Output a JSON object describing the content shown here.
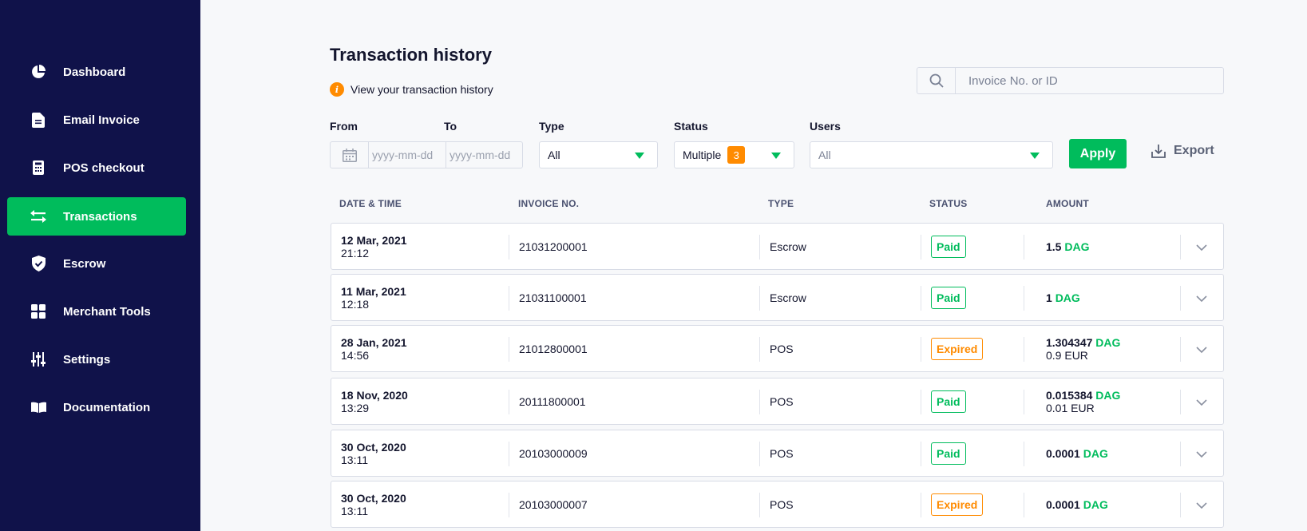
{
  "sidebar": {
    "items": [
      {
        "label": "Dashboard",
        "icon": "pie-chart-icon"
      },
      {
        "label": "Email Invoice",
        "icon": "document-icon"
      },
      {
        "label": "POS checkout",
        "icon": "calculator-icon"
      },
      {
        "label": "Transactions",
        "icon": "swap-arrows-icon",
        "active": true
      },
      {
        "label": "Escrow",
        "icon": "shield-check-icon"
      },
      {
        "label": "Merchant Tools",
        "icon": "grid-icon"
      },
      {
        "label": "Settings",
        "icon": "sliders-icon"
      },
      {
        "label": "Documentation",
        "icon": "book-icon"
      }
    ]
  },
  "page": {
    "title": "Transaction history",
    "info_text": "View your transaction history",
    "info_icon": "i"
  },
  "search": {
    "placeholder": "Invoice No. or ID"
  },
  "filters": {
    "from_label": "From",
    "to_label": "To",
    "from_placeholder": "yyyy-mm-dd",
    "to_placeholder": "yyyy-mm-dd",
    "type_label": "Type",
    "type_value": "All",
    "status_label": "Status",
    "status_value": "Multiple",
    "status_count": "3",
    "users_label": "Users",
    "users_value": "All",
    "apply_label": "Apply",
    "export_label": "Export"
  },
  "table": {
    "headers": {
      "date": "DATE & TIME",
      "invoice": "INVOICE NO.",
      "type": "TYPE",
      "status": "STATUS",
      "amount": "AMOUNT"
    },
    "rows": [
      {
        "date": "12 Mar, 2021",
        "time": "21:12",
        "invoice": "21031200001",
        "type": "Escrow",
        "status": "Paid",
        "amount": "1.5",
        "currency": "DAG",
        "fiat": ""
      },
      {
        "date": "11 Mar, 2021",
        "time": "12:18",
        "invoice": "21031100001",
        "type": "Escrow",
        "status": "Paid",
        "amount": "1",
        "currency": "DAG",
        "fiat": ""
      },
      {
        "date": "28 Jan, 2021",
        "time": "14:56",
        "invoice": "21012800001",
        "type": "POS",
        "status": "Expired",
        "amount": "1.304347",
        "currency": "DAG",
        "fiat": "0.9 EUR"
      },
      {
        "date": "18 Nov, 2020",
        "time": "13:29",
        "invoice": "20111800001",
        "type": "POS",
        "status": "Paid",
        "amount": "0.015384",
        "currency": "DAG",
        "fiat": "0.01 EUR"
      },
      {
        "date": "30 Oct, 2020",
        "time": "13:11",
        "invoice": "20103000009",
        "type": "POS",
        "status": "Paid",
        "amount": "0.0001",
        "currency": "DAG",
        "fiat": ""
      },
      {
        "date": "30 Oct, 2020",
        "time": "13:11",
        "invoice": "20103000007",
        "type": "POS",
        "status": "Expired",
        "amount": "0.0001",
        "currency": "DAG",
        "fiat": ""
      }
    ]
  },
  "colors": {
    "sidebar_bg": "#10124a",
    "accent": "#00bc5c",
    "warning": "#ff8b00"
  }
}
